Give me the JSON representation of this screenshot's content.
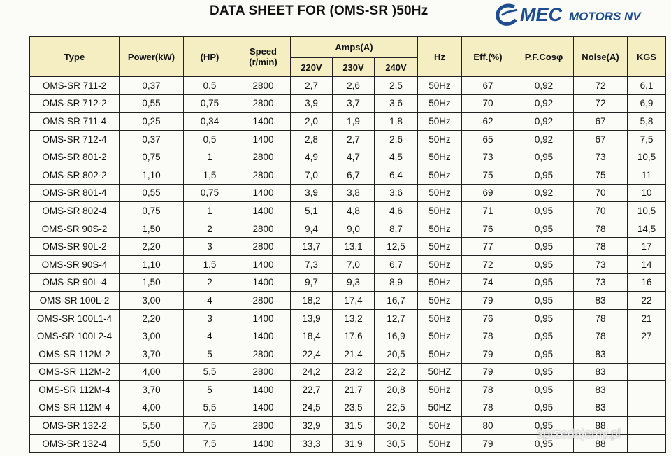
{
  "title": "DATA SHEET FOR (OMS-SR )50Hz",
  "logo": {
    "brand": "MEC",
    "tagline": "MOTORS NV"
  },
  "table": {
    "header": {
      "type": "Type",
      "power": "Power(kW)",
      "hp": "(HP)",
      "speed": [
        "Speed",
        "(r/min)"
      ],
      "amps": "Amps(A)",
      "voltages": [
        "220V",
        "230V",
        "240V"
      ],
      "hz": "Hz",
      "eff": "Eff.(%)",
      "pf": "P.F.Cosφ",
      "noise": "Noise(A)",
      "kgs": "KGS"
    },
    "rows": [
      [
        "OMS-SR 711-2",
        "0,37",
        "0,5",
        "2800",
        "2,7",
        "2,6",
        "2,5",
        "50Hz",
        "67",
        "0,92",
        "72",
        "6,1"
      ],
      [
        "OMS-SR 712-2",
        "0,55",
        "0,75",
        "2800",
        "3,9",
        "3,7",
        "3,6",
        "50Hz",
        "70",
        "0,92",
        "72",
        "6,9"
      ],
      [
        "OMS-SR 711-4",
        "0,25",
        "0,34",
        "1400",
        "2,0",
        "1,9",
        "1,8",
        "50Hz",
        "62",
        "0,92",
        "67",
        "5,8"
      ],
      [
        "OMS-SR 712-4",
        "0,37",
        "0,5",
        "1400",
        "2,8",
        "2,7",
        "2,6",
        "50Hz",
        "65",
        "0,92",
        "67",
        "7,5"
      ],
      [
        "OMS-SR 801-2",
        "0,75",
        "1",
        "2800",
        "4,9",
        "4,7",
        "4,5",
        "50Hz",
        "73",
        "0,95",
        "73",
        "10,5"
      ],
      [
        "OMS-SR 802-2",
        "1,10",
        "1,5",
        "2800",
        "7,0",
        "6,7",
        "6,4",
        "50Hz",
        "75",
        "0,95",
        "75",
        "11"
      ],
      [
        "OMS-SR 801-4",
        "0,55",
        "0,75",
        "1400",
        "3,9",
        "3,8",
        "3,6",
        "50Hz",
        "69",
        "0,92",
        "70",
        "10"
      ],
      [
        "OMS-SR 802-4",
        "0,75",
        "1",
        "1400",
        "5,1",
        "4,8",
        "4,6",
        "50Hz",
        "71",
        "0,95",
        "70",
        "10,5"
      ],
      [
        "OMS-SR 90S-2",
        "1,50",
        "2",
        "2800",
        "9,4",
        "9,0",
        "8,7",
        "50Hz",
        "76",
        "0,95",
        "78",
        "14,5"
      ],
      [
        "OMS-SR 90L-2",
        "2,20",
        "3",
        "2800",
        "13,7",
        "13,1",
        "12,5",
        "50Hz",
        "77",
        "0,95",
        "78",
        "17"
      ],
      [
        "OMS-SR 90S-4",
        "1,10",
        "1,5",
        "1400",
        "7,3",
        "7,0",
        "6,7",
        "50Hz",
        "72",
        "0,95",
        "73",
        "14"
      ],
      [
        "OMS-SR 90L-4",
        "1,50",
        "2",
        "1400",
        "9,7",
        "9,3",
        "8,9",
        "50Hz",
        "74",
        "0,95",
        "73",
        "16"
      ],
      [
        "OMS-SR 100L-2",
        "3,00",
        "4",
        "2800",
        "18,2",
        "17,4",
        "16,7",
        "50Hz",
        "79",
        "0,95",
        "83",
        "22"
      ],
      [
        "OMS-SR 100L1-4",
        "2,20",
        "3",
        "1400",
        "13,9",
        "13,2",
        "12,7",
        "50Hz",
        "76",
        "0,95",
        "78",
        "21"
      ],
      [
        "OMS-SR 100L2-4",
        "3,00",
        "4",
        "1400",
        "18,4",
        "17,6",
        "16,9",
        "50Hz",
        "78",
        "0,95",
        "78",
        "27"
      ],
      [
        "OMS-SR 112M-2",
        "3,70",
        "5",
        "2800",
        "22,4",
        "21,4",
        "20,5",
        "50Hz",
        "79",
        "0,95",
        "83",
        null
      ],
      [
        "OMS-SR 112M-2",
        "4,00",
        "5,5",
        "2800",
        "24,2",
        "23,2",
        "22,2",
        "50HZ",
        "79",
        "0,95",
        "83",
        null
      ],
      [
        "OMS-SR 112M-4",
        "3,70",
        "5",
        "1400",
        "22,7",
        "21,7",
        "20,8",
        "50Hz",
        "78",
        "0,95",
        "83",
        null
      ],
      [
        "OMS-SR 112M-4",
        "4,00",
        "5,5",
        "1400",
        "24,5",
        "23,5",
        "22,5",
        "50HZ",
        "78",
        "0,95",
        "83",
        null
      ],
      [
        "OMS-SR 132-2",
        "5,50",
        "7,5",
        "2800",
        "32,9",
        "31,5",
        "30,2",
        "50Hz",
        "80",
        "0,95",
        "88",
        null
      ],
      [
        "OMS-SR 132-4",
        "5,50",
        "7,5",
        "1400",
        "33,3",
        "31,9",
        "30,5",
        "50Hz",
        "79",
        "0,95",
        "88",
        null
      ]
    ]
  },
  "watermark": "sprzedajemy.pl"
}
